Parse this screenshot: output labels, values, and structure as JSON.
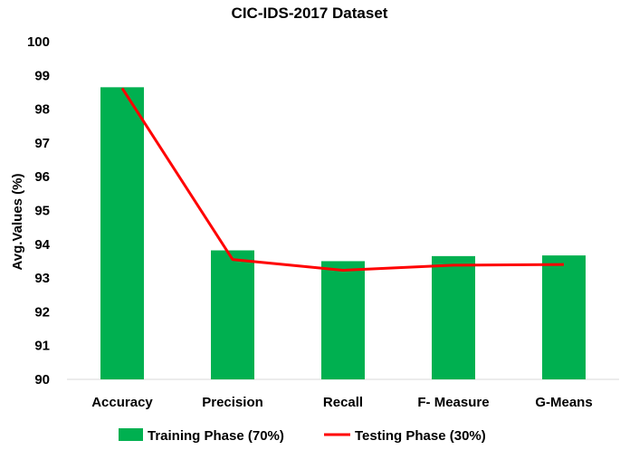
{
  "chart_data": {
    "type": "bar",
    "title": "CIC-IDS-2017 Dataset",
    "xlabel": "",
    "ylabel": "Avg.Values (%)",
    "ylim": [
      90,
      100
    ],
    "yticks": [
      90,
      91,
      92,
      93,
      94,
      95,
      96,
      97,
      98,
      99,
      100
    ],
    "categories": [
      "Accuracy",
      "Precision",
      "Recall",
      "F- Measure",
      "G-Means"
    ],
    "grid": false,
    "legend_position": "bottom",
    "series": [
      {
        "name": "Training Phase (70%)",
        "kind": "bar",
        "color": "#00b050",
        "values": [
          98.65,
          93.82,
          93.5,
          93.65,
          93.67
        ]
      },
      {
        "name": "Testing Phase (30%)",
        "kind": "line",
        "color": "#ff0000",
        "values": [
          98.62,
          93.55,
          93.23,
          93.38,
          93.4
        ]
      }
    ]
  }
}
